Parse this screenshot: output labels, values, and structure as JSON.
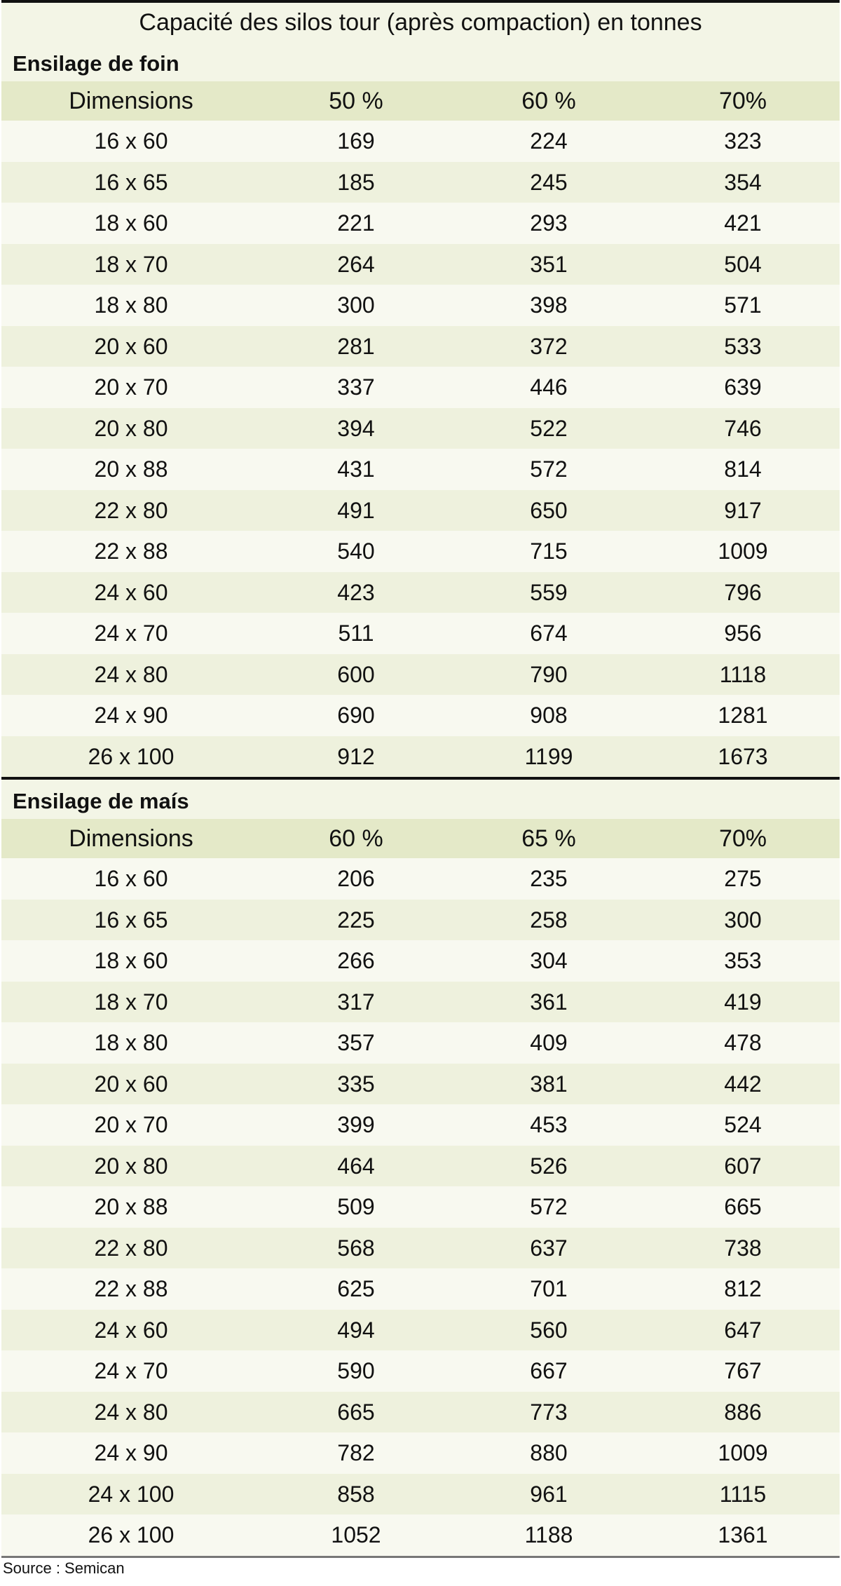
{
  "title": "Capacité des silos tour (après compaction) en tonnes",
  "sections": [
    {
      "label": "Ensilage de foin",
      "header": [
        "Dimensions",
        "50 %",
        "60 %",
        "70%"
      ],
      "rows": [
        [
          "16 x 60",
          169,
          224,
          323
        ],
        [
          "16 x 65",
          185,
          245,
          354
        ],
        [
          "18 x 60",
          221,
          293,
          421
        ],
        [
          "18 x 70",
          264,
          351,
          504
        ],
        [
          "18 x 80",
          300,
          398,
          571
        ],
        [
          "20 x 60",
          281,
          372,
          533
        ],
        [
          "20 x 70",
          337,
          446,
          639
        ],
        [
          "20 x 80",
          394,
          522,
          746
        ],
        [
          "20 x 88",
          431,
          572,
          814
        ],
        [
          "22 x 80",
          491,
          650,
          917
        ],
        [
          "22 x 88",
          540,
          715,
          1009
        ],
        [
          "24 x 60",
          423,
          559,
          796
        ],
        [
          "24 x 70",
          511,
          674,
          956
        ],
        [
          "24 x 80",
          600,
          790,
          1118
        ],
        [
          "24 x 90",
          690,
          908,
          1281
        ],
        [
          "26 x 100",
          912,
          1199,
          1673
        ]
      ]
    },
    {
      "label": "Ensilage de maís",
      "header": [
        "Dimensions",
        "60 %",
        "65 %",
        "70%"
      ],
      "rows": [
        [
          "16 x 60",
          206,
          235,
          275
        ],
        [
          "16 x 65",
          225,
          258,
          300
        ],
        [
          "18 x 60",
          266,
          304,
          353
        ],
        [
          "18 x 70",
          317,
          361,
          419
        ],
        [
          "18 x 80",
          357,
          409,
          478
        ],
        [
          "20 x 60",
          335,
          381,
          442
        ],
        [
          "20 x 70",
          399,
          453,
          524
        ],
        [
          "20 x 80",
          464,
          526,
          607
        ],
        [
          "20 x 88",
          509,
          572,
          665
        ],
        [
          "22 x 80",
          568,
          637,
          738
        ],
        [
          "22 x 88",
          625,
          701,
          812
        ],
        [
          "24 x 60",
          494,
          560,
          647
        ],
        [
          "24 x 70",
          590,
          667,
          767
        ],
        [
          "24 x 80",
          665,
          773,
          886
        ],
        [
          "24 x 90",
          782,
          880,
          1009
        ],
        [
          "24 x 100",
          858,
          961,
          1115
        ],
        [
          "26 x 100",
          1052,
          1188,
          1361
        ]
      ]
    }
  ],
  "source": "Source : Semican"
}
